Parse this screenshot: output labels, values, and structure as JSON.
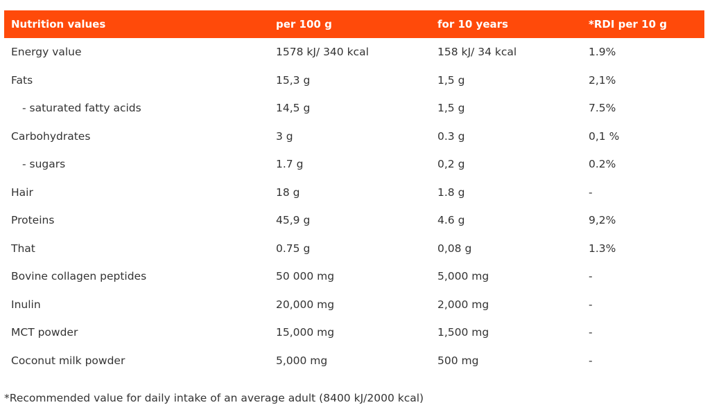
{
  "header": {
    "col1": "Nutrition values",
    "col2": "per 100 g",
    "col3": "for 10 years",
    "col4": "*RDI per 10 g"
  },
  "rows": [
    {
      "name": "Energy value",
      "per100": "1578 kJ/ 340 kcal",
      "per10": "158 kJ/ 34 kcal",
      "rdi": "1.9%",
      "indent": false
    },
    {
      "name": "Fats",
      "per100": "15,3 g",
      "per10": "1,5 g",
      "rdi": "2,1%",
      "indent": false
    },
    {
      "name": "- saturated fatty acids",
      "per100": "14,5 g",
      "per10": "1,5 g",
      "rdi": "7.5%",
      "indent": true
    },
    {
      "name": "Carbohydrates",
      "per100": "3 g",
      "per10": "0.3 g",
      "rdi": "0,1 %",
      "indent": false
    },
    {
      "name": "- sugars",
      "per100": "1.7 g",
      "per10": "0,2 g",
      "rdi": "0.2%",
      "indent": true
    },
    {
      "name": "Hair",
      "per100": "18 g",
      "per10": "1.8 g",
      "rdi": "-",
      "indent": false
    },
    {
      "name": "Proteins",
      "per100": "45,9 g",
      "per10": "4.6 g",
      "rdi": "9,2%",
      "indent": false
    },
    {
      "name": "That",
      "per100": "0.75 g",
      "per10": "0,08 g",
      "rdi": "1.3%",
      "indent": false
    },
    {
      "name": "Bovine collagen peptides",
      "per100": "50 000 mg",
      "per10": "5,000 mg",
      "rdi": "-",
      "indent": false
    },
    {
      "name": "Inulin",
      "per100": "20,000 mg",
      "per10": "2,000 mg",
      "rdi": "-",
      "indent": false
    },
    {
      "name": "MCT powder",
      "per100": "15,000 mg",
      "per10": "1,500 mg",
      "rdi": "-",
      "indent": false
    },
    {
      "name": "Coconut milk powder",
      "per100": "5,000 mg",
      "per10": "500 mg",
      "rdi": "-",
      "indent": false
    }
  ],
  "footnote": "*Recommended value for daily intake of an average adult (8400 kJ/2000 kcal)",
  "colors": {
    "header_bg": "#ff4a0a",
    "header_text": "#ffffff",
    "body_text": "#333333"
  }
}
